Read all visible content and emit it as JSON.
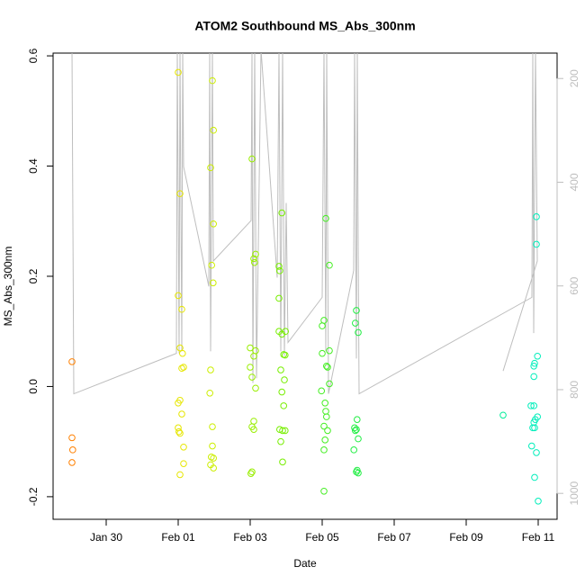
{
  "chart_data": {
    "type": "scatter",
    "title": "ATOM2 Southbound MS_Abs_300nm",
    "x_label": "Date",
    "y_label": "MS_Abs_300nm",
    "xlim": [
      28.525,
      42.525
    ],
    "xticks": [
      {
        "value": 30,
        "label": "Jan 30"
      },
      {
        "value": 32,
        "label": "Feb 01"
      },
      {
        "value": 34,
        "label": "Feb 03"
      },
      {
        "value": 36,
        "label": "Feb 05"
      },
      {
        "value": 38,
        "label": "Feb 07"
      },
      {
        "value": 40,
        "label": "Feb 09"
      },
      {
        "value": 42,
        "label": "Feb 11"
      }
    ],
    "ylim": [
      -0.241,
      0.605
    ],
    "yticks": [
      -0.2,
      {
        "value": 0,
        "label": "0.0"
      },
      0.2,
      0.4,
      0.6
    ],
    "y2lim": [
      1050,
      151
    ],
    "y2ticks": [
      200,
      400,
      600,
      800,
      1000
    ],
    "series": [
      {
        "type": "line",
        "axis": "y2",
        "color": "#bebebe",
        "x": [
          29.05,
          29.1,
          31.95,
          31.975,
          32.025,
          32.05,
          32.1,
          32.125,
          32.15,
          32.85,
          32.875,
          32.9,
          32.95,
          32.975,
          34.025,
          34.05,
          34.075,
          34.125,
          34.175,
          34.3,
          34.75,
          34.8,
          34.85,
          34.9,
          34.95,
          35,
          35.05,
          36,
          36.05,
          36.1,
          36.125,
          36.175,
          36.875,
          36.9,
          36.95,
          36.975,
          37,
          37.025,
          41.825,
          41.85,
          41.875,
          41.925,
          41.975,
          41.025
        ],
        "values": [
          144,
          808,
          730,
          144,
          730,
          144,
          726,
          144,
          370,
          601,
          144,
          726,
          144,
          552,
          474,
          144,
          787,
          144,
          778,
          144,
          584,
          144,
          726,
          144,
          735,
          440,
          709,
          622,
          144,
          726,
          144,
          808,
          570,
          144,
          740,
          144,
          518,
          808,
          622,
          144,
          691,
          144,
          552,
          764
        ]
      },
      {
        "color": "#FF8000",
        "x": [
          29.05,
          29.05,
          29.07,
          29.05
        ],
        "values": [
          0.045,
          -0.093,
          -0.115,
          -0.138
        ]
      },
      {
        "color": "#E6E600",
        "x": [
          32.0,
          32.05,
          32.1,
          32.0,
          32.05,
          32.12,
          32.15,
          32.1,
          32.05,
          32.0,
          32.1,
          32.0,
          32.02,
          32.05,
          32.15,
          32.15,
          32.05
        ],
        "values": [
          0.57,
          0.35,
          0.14,
          0.165,
          0.07,
          0.06,
          0.035,
          0.033,
          -0.025,
          -0.03,
          -0.05,
          -0.075,
          -0.082,
          -0.085,
          -0.11,
          -0.14,
          -0.16
        ]
      },
      {
        "color": "#CCEE00",
        "x": [
          32.95,
          32.98,
          32.9,
          32.98,
          32.93,
          32.97,
          32.9,
          32.88,
          32.95,
          32.95,
          32.92,
          32.98,
          32.9,
          32.98
        ],
        "values": [
          0.555,
          0.465,
          0.397,
          0.295,
          0.22,
          0.188,
          0.03,
          -0.012,
          -0.073,
          -0.108,
          -0.128,
          -0.13,
          -0.142,
          -0.148
        ]
      },
      {
        "color": "#99EE00",
        "x": [
          34.05,
          34.15,
          34.1,
          34.12,
          34.0,
          34.15,
          34.1,
          34.0,
          34.05,
          34.15,
          34.1,
          34.05,
          34.1,
          34.05,
          34.02
        ],
        "values": [
          0.413,
          0.24,
          0.232,
          0.225,
          0.07,
          0.065,
          0.055,
          0.035,
          0.017,
          -0.003,
          -0.063,
          -0.073,
          -0.078,
          -0.155,
          -0.158
        ]
      },
      {
        "color": "#77EE00",
        "x": [
          34.88,
          34.8,
          34.82,
          34.8,
          34.8,
          34.88,
          34.98,
          34.93,
          34.97,
          34.85,
          34.95,
          34.88,
          34.93,
          34.82,
          34.9,
          34.97,
          34.85,
          34.9
        ],
        "values": [
          0.315,
          0.218,
          0.21,
          0.16,
          0.1,
          0.095,
          0.1,
          0.058,
          0.057,
          0.03,
          0.012,
          -0.01,
          -0.035,
          -0.078,
          -0.08,
          -0.08,
          -0.1,
          -0.137
        ]
      },
      {
        "color": "#44EE22",
        "x": [
          36.1,
          36.2,
          36.05,
          36.0,
          36.0,
          36.2,
          36.12,
          36.15,
          36.2,
          35.98,
          36.08,
          36.1,
          36.12,
          36.05,
          36.15,
          36.08,
          36.05,
          36.05
        ],
        "values": [
          0.305,
          0.22,
          0.12,
          0.11,
          0.06,
          0.065,
          0.037,
          0.035,
          0.005,
          -0.008,
          -0.03,
          -0.045,
          -0.055,
          -0.072,
          -0.08,
          -0.097,
          -0.115,
          -0.19
        ]
      },
      {
        "color": "#22EE44",
        "x": [
          36.95,
          36.92,
          37.0,
          36.97,
          36.9,
          36.95,
          36.92,
          37.0,
          36.88,
          36.97,
          36.95,
          37.0
        ],
        "values": [
          0.138,
          0.115,
          0.098,
          -0.06,
          -0.075,
          -0.078,
          -0.08,
          -0.095,
          -0.115,
          -0.152,
          -0.155,
          -0.157
        ]
      },
      {
        "color": "#00EE99",
        "x": [
          41.025
        ],
        "values": [
          -0.052
        ]
      },
      {
        "color": "#00EEBB",
        "x": [
          41.95,
          41.95,
          41.98,
          41.9,
          41.88,
          41.88,
          41.8,
          41.88,
          41.92,
          41.88,
          41.85,
          41.9,
          41.98,
          41.82,
          41.95,
          41.9,
          42.0
        ],
        "values": [
          0.308,
          0.258,
          0.055,
          0.042,
          0.037,
          0.018,
          -0.035,
          -0.035,
          -0.06,
          -0.065,
          -0.075,
          -0.075,
          -0.055,
          -0.108,
          -0.12,
          -0.165,
          -0.208
        ]
      }
    ]
  }
}
